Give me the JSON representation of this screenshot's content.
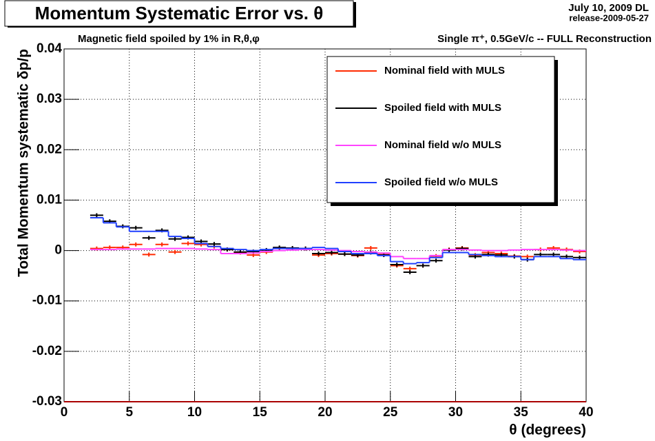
{
  "chart_data": {
    "type": "histogram",
    "title": "Momentum Systematic Error vs. θ",
    "date": "July 10, 2009 DL",
    "release": "release-2009-05-27",
    "subtitle_left": "Magnetic field spoiled by 1% in R,θ,φ",
    "subtitle_right": "Single π⁺, 0.5GeV/c  -- FULL Reconstruction",
    "x_label": "θ (degrees)",
    "y_label": "Total Momentum systematic δp/p",
    "xlim": [
      0,
      40
    ],
    "ylim": [
      -0.03,
      0.04
    ],
    "xticks": [
      0,
      5,
      10,
      15,
      20,
      25,
      30,
      35,
      40
    ],
    "yticks": [
      -0.03,
      -0.02,
      -0.01,
      0,
      0.01,
      0.02,
      0.03,
      0.04
    ],
    "grid": true,
    "legend": "upper right",
    "bins": [
      2,
      3,
      4,
      5,
      6,
      7,
      8,
      9,
      10,
      11,
      12,
      13,
      14,
      15,
      16,
      17,
      18,
      19,
      20,
      21,
      22,
      23,
      24,
      25,
      26,
      27,
      28,
      29,
      30,
      31,
      32,
      33,
      34,
      35,
      36,
      37,
      38,
      39,
      40
    ],
    "series": [
      {
        "name": "Nominal field with MULS",
        "color": "#ff2a00",
        "style": "errorbar",
        "values": [
          0.0004,
          0.0006,
          0.0006,
          0.0012,
          -0.0008,
          0.0012,
          -0.0003,
          0.0014,
          0.0012,
          0.0008,
          0.0002,
          -0.0004,
          -0.0009,
          -0.0003,
          0.0005,
          0.0004,
          0.0004,
          -0.0009,
          -0.0006,
          -0.0007,
          -0.001,
          0.0005,
          -0.0008,
          -0.003,
          -0.0036,
          -0.003,
          -0.0011,
          0.0002,
          0.0005,
          -0.0009,
          -0.0004,
          -0.0006,
          -0.0011,
          -0.0012,
          0.0002,
          0.0005,
          0.0002,
          -0.0002
        ],
        "errors": [
          0.0004,
          0.0004,
          0.0004,
          0.0004,
          0.0004,
          0.0004,
          0.0004,
          0.0004,
          0.0004,
          0.0004,
          0.0004,
          0.0004,
          0.0004,
          0.0004,
          0.0004,
          0.0004,
          0.0004,
          0.0004,
          0.0004,
          0.0004,
          0.0004,
          0.0004,
          0.0004,
          0.0004,
          0.0004,
          0.0004,
          0.0004,
          0.0004,
          0.0004,
          0.0004,
          0.0004,
          0.0004,
          0.0004,
          0.0004,
          0.0004,
          0.0004,
          0.0004,
          0.0004
        ]
      },
      {
        "name": "Spoiled field with MULS",
        "color": "#000000",
        "style": "errorbar",
        "values": [
          0.007,
          0.0058,
          0.0048,
          0.0045,
          0.0025,
          0.004,
          0.0023,
          0.0026,
          0.0018,
          0.0013,
          0.0002,
          -0.0003,
          -0.0002,
          0.0001,
          0.0006,
          0.0005,
          0.0004,
          -0.0006,
          -0.0004,
          -0.0007,
          -0.0009,
          -0.0004,
          -0.0009,
          -0.0028,
          -0.0043,
          -0.003,
          -0.002,
          0.0001,
          0.0004,
          -0.0012,
          -0.0008,
          -0.0009,
          -0.0012,
          -0.0018,
          -0.0008,
          -0.0008,
          -0.0012,
          -0.0014
        ],
        "errors": [
          0.0004,
          0.0004,
          0.0004,
          0.0004,
          0.0004,
          0.0004,
          0.0004,
          0.0004,
          0.0004,
          0.0004,
          0.0004,
          0.0004,
          0.0004,
          0.0004,
          0.0004,
          0.0004,
          0.0004,
          0.0004,
          0.0004,
          0.0004,
          0.0004,
          0.0004,
          0.0004,
          0.0004,
          0.0004,
          0.0004,
          0.0004,
          0.0004,
          0.0004,
          0.0004,
          0.0004,
          0.0004,
          0.0004,
          0.0004,
          0.0004,
          0.0004,
          0.0004,
          0.0004
        ]
      },
      {
        "name": "Nominal field w/o MULS",
        "color": "#ff44ff",
        "style": "step",
        "values": [
          0.0002,
          0.0002,
          0.0003,
          0.0003,
          0.0003,
          0.0004,
          0.0004,
          0.0004,
          0.0003,
          0.0002,
          -0.0006,
          -0.0006,
          -0.0005,
          -0.0002,
          0,
          0.0001,
          0.0002,
          0.0002,
          0.0001,
          0,
          -0.0002,
          -0.0003,
          -0.0005,
          -0.0012,
          -0.0016,
          -0.0016,
          -0.001,
          0.0002,
          0.0002,
          0.0001,
          0,
          0,
          0.0001,
          0.0002,
          0.0002,
          0.0002,
          0.0001,
          0
        ]
      },
      {
        "name": "Spoiled field w/o MULS",
        "color": "#2040ff",
        "style": "step",
        "values": [
          0.0065,
          0.0055,
          0.0047,
          0.0038,
          0.0038,
          0.0038,
          0.0028,
          0.0024,
          0.0014,
          0.0008,
          0.0004,
          0.0002,
          0,
          0.0002,
          0.0004,
          0.0004,
          0.0004,
          0.0006,
          0.0004,
          -0.0002,
          -0.0006,
          -0.0006,
          -0.001,
          -0.0022,
          -0.0026,
          -0.0024,
          -0.0014,
          -0.0004,
          -0.0004,
          -0.0008,
          -0.001,
          -0.0012,
          -0.0012,
          -0.0018,
          -0.0012,
          -0.0012,
          -0.0016,
          -0.0018
        ]
      }
    ]
  }
}
